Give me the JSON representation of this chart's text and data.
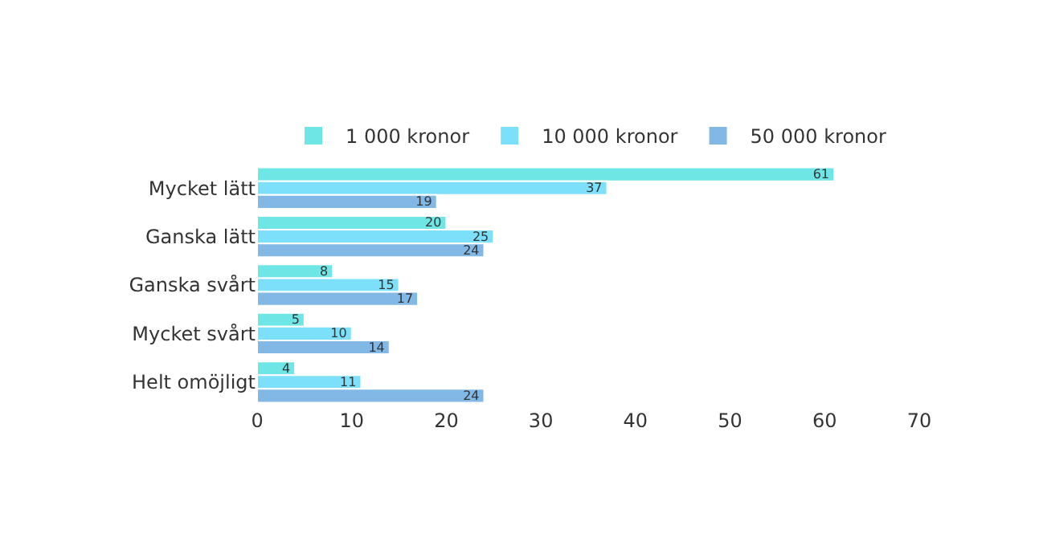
{
  "chart_data": {
    "type": "bar",
    "orientation": "horizontal",
    "categories": [
      "Mycket lätt",
      "Ganska lätt",
      "Ganska svårt",
      "Mycket svårt",
      "Helt omöjligt"
    ],
    "series": [
      {
        "name": "1 000 kronor",
        "color": "#6ee6e6",
        "values": [
          61,
          20,
          8,
          5,
          4
        ]
      },
      {
        "name": "10 000 kronor",
        "color": "#7de0fa",
        "values": [
          37,
          25,
          15,
          10,
          11
        ]
      },
      {
        "name": "50 000 kronor",
        "color": "#82b8e6",
        "values": [
          19,
          24,
          17,
          14,
          24
        ]
      }
    ],
    "xlim": [
      0,
      70
    ],
    "xticks": [
      0,
      10,
      20,
      30,
      40,
      50,
      60,
      70
    ],
    "data_labels": true,
    "legend": "top"
  }
}
